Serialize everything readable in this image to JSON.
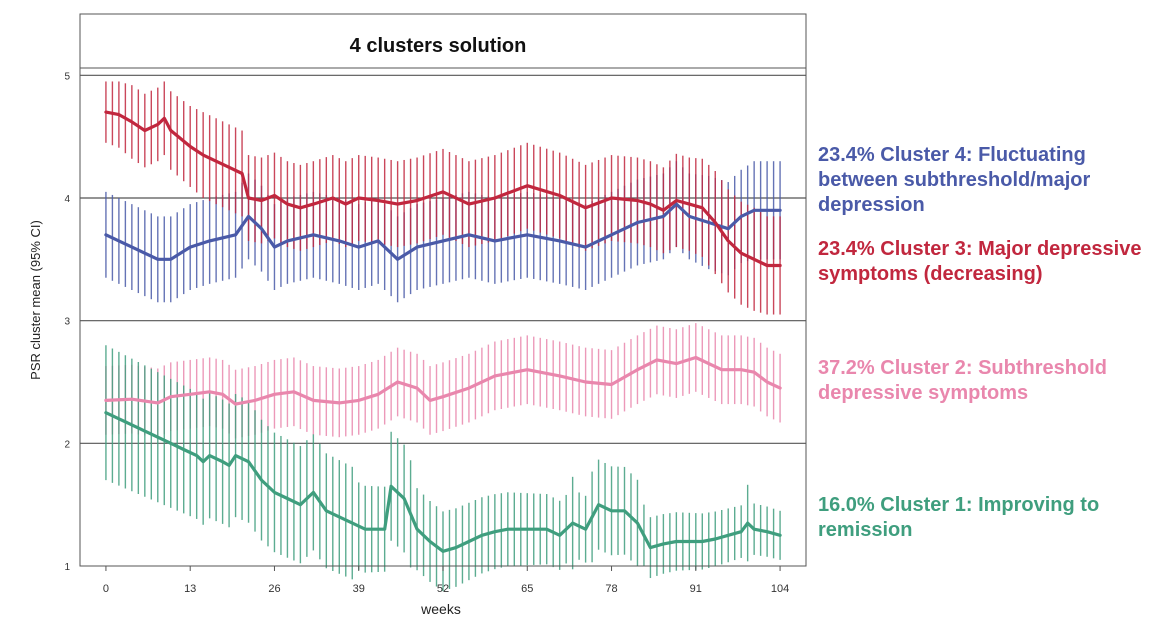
{
  "chart_data": {
    "type": "line",
    "title": "4 clusters  solution",
    "xlabel": "weeks",
    "ylabel": "PSR cluster mean (95% CI)",
    "xlim": [
      -4,
      108
    ],
    "ylim": [
      1,
      5.5
    ],
    "xticks": [
      0,
      13,
      26,
      39,
      52,
      65,
      78,
      91,
      104
    ],
    "yticks": [
      1,
      2,
      3,
      4,
      5
    ],
    "gridlines_y": [
      2,
      3,
      4,
      5
    ],
    "error_bars": "95% CI",
    "series": [
      {
        "name": "cluster-4",
        "label": "23.4% Cluster 4: Fluctuating between subthreshold/major depression",
        "color": "#4a5aa8",
        "x": [
          0,
          4,
          8,
          10,
          13,
          16,
          20,
          22,
          24,
          26,
          28,
          32,
          36,
          39,
          42,
          45,
          48,
          52,
          56,
          60,
          65,
          70,
          74,
          78,
          82,
          86,
          88,
          90,
          93,
          96,
          98,
          100,
          102,
          104
        ],
        "values": [
          3.7,
          3.6,
          3.5,
          3.5,
          3.6,
          3.65,
          3.7,
          3.85,
          3.75,
          3.6,
          3.65,
          3.7,
          3.65,
          3.6,
          3.65,
          3.5,
          3.6,
          3.65,
          3.7,
          3.65,
          3.7,
          3.65,
          3.6,
          3.7,
          3.8,
          3.85,
          3.95,
          3.85,
          3.8,
          3.75,
          3.85,
          3.9,
          3.9,
          3.9
        ],
        "ci_halfwidth": [
          0.35,
          0.35,
          0.35,
          0.35,
          0.35,
          0.35,
          0.35,
          0.35,
          0.35,
          0.35,
          0.35,
          0.35,
          0.35,
          0.35,
          0.35,
          0.35,
          0.35,
          0.35,
          0.35,
          0.35,
          0.35,
          0.35,
          0.35,
          0.35,
          0.35,
          0.35,
          0.35,
          0.35,
          0.38,
          0.38,
          0.38,
          0.4,
          0.4,
          0.4
        ]
      },
      {
        "name": "cluster-3",
        "label": "23.4% Cluster 3: Major depressive symptoms (decreasing)",
        "color": "#c1273e",
        "x": [
          0,
          2,
          4,
          6,
          8,
          9,
          10,
          13,
          15,
          17,
          19,
          21,
          22,
          24,
          26,
          28,
          30,
          32,
          35,
          37,
          39,
          42,
          45,
          48,
          52,
          56,
          60,
          65,
          70,
          74,
          78,
          82,
          84,
          86,
          88,
          90,
          92,
          94,
          96,
          98,
          100,
          102,
          104
        ],
        "values": [
          4.7,
          4.68,
          4.62,
          4.55,
          4.6,
          4.65,
          4.55,
          4.42,
          4.35,
          4.3,
          4.25,
          4.2,
          4.0,
          3.98,
          4.02,
          3.95,
          3.92,
          3.95,
          4.0,
          3.95,
          4.0,
          3.98,
          3.95,
          3.98,
          4.05,
          3.95,
          4.0,
          4.1,
          4.02,
          3.92,
          4.0,
          3.98,
          3.95,
          3.9,
          3.98,
          3.95,
          3.92,
          3.8,
          3.65,
          3.55,
          3.5,
          3.45,
          3.45
        ],
        "ci_halfwidth": [
          0.25,
          0.27,
          0.3,
          0.3,
          0.3,
          0.3,
          0.32,
          0.33,
          0.35,
          0.35,
          0.35,
          0.35,
          0.35,
          0.35,
          0.35,
          0.35,
          0.35,
          0.35,
          0.35,
          0.35,
          0.35,
          0.35,
          0.35,
          0.35,
          0.35,
          0.35,
          0.35,
          0.35,
          0.35,
          0.35,
          0.35,
          0.35,
          0.35,
          0.35,
          0.38,
          0.38,
          0.4,
          0.42,
          0.42,
          0.42,
          0.42,
          0.4,
          0.4
        ]
      },
      {
        "name": "cluster-2",
        "label": "37.2% Cluster 2: Subthreshold depressive symptoms",
        "color": "#e987ad",
        "x": [
          0,
          4,
          8,
          10,
          13,
          16,
          18,
          20,
          23,
          26,
          29,
          32,
          36,
          39,
          42,
          45,
          48,
          50,
          52,
          56,
          60,
          65,
          70,
          74,
          78,
          82,
          85,
          88,
          91,
          95,
          98,
          100,
          102,
          104
        ],
        "values": [
          2.35,
          2.36,
          2.33,
          2.38,
          2.4,
          2.42,
          2.4,
          2.32,
          2.35,
          2.4,
          2.42,
          2.35,
          2.33,
          2.35,
          2.4,
          2.5,
          2.45,
          2.35,
          2.38,
          2.45,
          2.55,
          2.6,
          2.55,
          2.5,
          2.48,
          2.6,
          2.68,
          2.65,
          2.7,
          2.6,
          2.6,
          2.58,
          2.5,
          2.45
        ],
        "ci_halfwidth": [
          0.28,
          0.28,
          0.28,
          0.28,
          0.28,
          0.28,
          0.28,
          0.28,
          0.28,
          0.28,
          0.28,
          0.28,
          0.28,
          0.28,
          0.28,
          0.28,
          0.28,
          0.28,
          0.28,
          0.28,
          0.28,
          0.28,
          0.28,
          0.28,
          0.28,
          0.28,
          0.28,
          0.28,
          0.28,
          0.28,
          0.28,
          0.28,
          0.28,
          0.28
        ]
      },
      {
        "name": "cluster-1",
        "label": "16.0% Cluster 1: Improving to remission",
        "color": "#3f9e7e",
        "x": [
          0,
          2,
          4,
          6,
          8,
          10,
          12,
          14,
          15,
          16,
          18,
          19,
          20,
          22,
          24,
          26,
          28,
          30,
          32,
          34,
          36,
          38,
          40,
          42,
          43,
          44,
          46,
          48,
          50,
          52,
          54,
          56,
          58,
          60,
          62,
          65,
          68,
          70,
          72,
          74,
          76,
          78,
          80,
          82,
          84,
          86,
          88,
          90,
          92,
          94,
          96,
          98,
          99,
          100,
          102,
          104
        ],
        "values": [
          2.25,
          2.2,
          2.15,
          2.1,
          2.05,
          2.0,
          1.95,
          1.9,
          1.85,
          1.9,
          1.85,
          1.82,
          1.9,
          1.85,
          1.7,
          1.6,
          1.55,
          1.5,
          1.6,
          1.45,
          1.4,
          1.35,
          1.3,
          1.3,
          1.3,
          1.65,
          1.55,
          1.3,
          1.2,
          1.12,
          1.15,
          1.2,
          1.25,
          1.28,
          1.3,
          1.3,
          1.3,
          1.25,
          1.35,
          1.3,
          1.5,
          1.45,
          1.45,
          1.35,
          1.15,
          1.18,
          1.2,
          1.2,
          1.2,
          1.22,
          1.25,
          1.28,
          1.35,
          1.3,
          1.28,
          1.25
        ]
      }
    ]
  },
  "legend": {
    "items": [
      {
        "text": "23.4% Cluster 4: Fluctuating between subthreshold/major depression",
        "color": "#4a5aa8"
      },
      {
        "text": "23.4% Cluster 3: Major depressive symptoms (decreasing)",
        "color": "#c1273e"
      },
      {
        "text": "37.2% Cluster 2: Subthreshold depressive symptoms",
        "color": "#e987ad"
      },
      {
        "text": "16.0% Cluster 1: Improving to remission",
        "color": "#3f9e7e"
      }
    ]
  }
}
